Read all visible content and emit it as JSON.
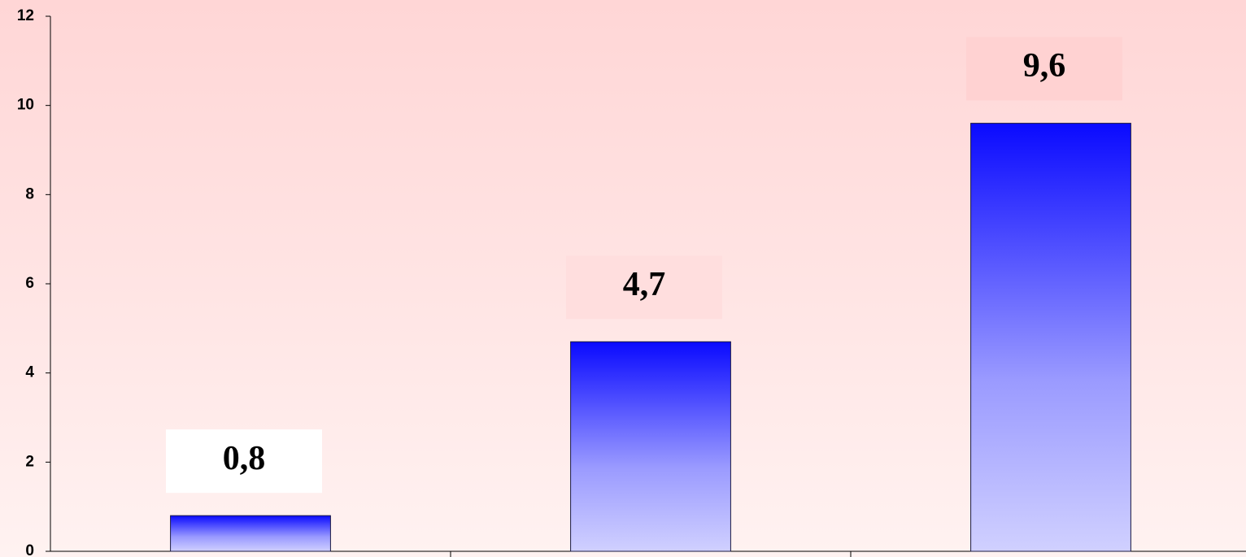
{
  "chart_data": {
    "type": "bar",
    "categories": [
      null,
      null,
      null
    ],
    "values": [
      0.8,
      4.7,
      9.6
    ],
    "value_labels": [
      "0,8",
      "4,7",
      "9,6"
    ],
    "color": "#0000ff",
    "ylim": [
      0,
      12
    ],
    "yticks": [
      0,
      2,
      4,
      6,
      8,
      10,
      12
    ],
    "grid": false
  }
}
